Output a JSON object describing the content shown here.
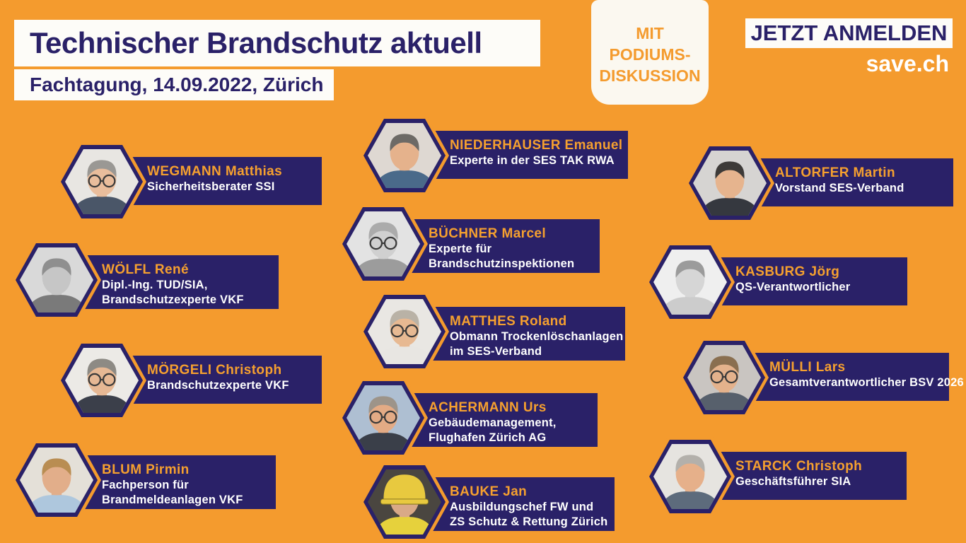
{
  "header": {
    "title": "Technischer Brandschutz aktuell",
    "subtitle": "Fachtagung, 14.09.2022, Zürich",
    "badge_lines": [
      "MIT",
      "PODIUMS-",
      "DISKUSSION"
    ],
    "register_label": "JETZT ANMELDEN",
    "website": "save.ch"
  },
  "colors": {
    "background_orange": "#F49B2E",
    "panel_navy": "#2A2168",
    "name_orange": "#F5A02F",
    "banner_white": "#FDFCF8"
  },
  "speakers": {
    "left": [
      {
        "name": "WEGMANN Matthias",
        "role_lines": [
          "Sicherheitsberater SSI"
        ],
        "photo": {
          "bg": "#e8e6e2",
          "skin": "#e9bd9c",
          "hair": "#9a9894",
          "shirt": "#4a5668",
          "glasses": true,
          "helmet": false
        }
      },
      {
        "name": "WÖLFL René",
        "role_lines": [
          "Dipl.-Ing. TUD/SIA,",
          "Brandschutzexperte VKF"
        ],
        "photo": {
          "bg": "#d9d9d9",
          "skin": "#c6c6c6",
          "hair": "#8f8f8f",
          "shirt": "#7a7a7a",
          "glasses": false,
          "helmet": false
        }
      },
      {
        "name": "MÖRGELI Christoph",
        "role_lines": [
          "Brandschutzexperte VKF"
        ],
        "photo": {
          "bg": "#eceae6",
          "skin": "#e6b894",
          "hair": "#8d8a84",
          "shirt": "#3b3f4a",
          "glasses": true,
          "helmet": false
        }
      },
      {
        "name": "BLUM Pirmin",
        "role_lines": [
          "Fachperson für",
          "Brandmeldeanlagen VKF"
        ],
        "photo": {
          "bg": "#e4e0d8",
          "skin": "#e2ae8a",
          "hair": "#b98d52",
          "shirt": "#aec7dd",
          "glasses": false,
          "helmet": false
        }
      }
    ],
    "center": [
      {
        "name": "NIEDERHAUSER Emanuel",
        "role_lines": [
          "Experte in der SES TAK RWA"
        ],
        "photo": {
          "bg": "#ded8d2",
          "skin": "#e5b28c",
          "hair": "#6d6a66",
          "shirt": "#4a6a8a",
          "glasses": false,
          "helmet": false
        }
      },
      {
        "name": "BÜCHNER Marcel",
        "role_lines": [
          "Experte für",
          "Brandschutzinspektionen"
        ],
        "photo": {
          "bg": "#e3e3e3",
          "skin": "#d0d0d0",
          "hair": "#ababab",
          "shirt": "#9c9c9c",
          "glasses": true,
          "helmet": false
        }
      },
      {
        "name": "MATTHES Roland",
        "role_lines": [
          "Obmann Trockenlöschanlagen",
          "im SES-Verband"
        ],
        "photo": {
          "bg": "#e9e7e3",
          "skin": "#e7b992",
          "hair": "#b9b2a6",
          "shirt": "#e8e6e2",
          "glasses": true,
          "helmet": false
        }
      },
      {
        "name": "ACHERMANN Urs",
        "role_lines": [
          "Gebäudemanagement,",
          "Flughafen Zürich AG"
        ],
        "photo": {
          "bg": "#aebfd2",
          "skin": "#e3ab85",
          "hair": "#9d9489",
          "shirt": "#3a3f49",
          "glasses": true,
          "helmet": false
        }
      },
      {
        "name": "BAUKE Jan",
        "role_lines": [
          "Ausbildungschef FW und",
          "ZS Schutz & Rettung Zürich"
        ],
        "photo": {
          "bg": "#4a4640",
          "skin": "#d9a987",
          "hair": "#e8c93f",
          "shirt": "#e6d13c",
          "glasses": false,
          "helmet": true
        }
      }
    ],
    "right": [
      {
        "name": "ALTORFER Martin",
        "role_lines": [
          "Vorstand SES-Verband"
        ],
        "photo": {
          "bg": "#d6d4d2",
          "skin": "#e6b48e",
          "hair": "#3d3a38",
          "shirt": "#35383f",
          "glasses": false,
          "helmet": false
        }
      },
      {
        "name": "KASBURG Jörg",
        "role_lines": [
          "QS-Verantwortlicher"
        ],
        "photo": {
          "bg": "#efefef",
          "skin": "#d6d6d6",
          "hair": "#9b9b9b",
          "shirt": "#cccccc",
          "glasses": false,
          "helmet": false
        }
      },
      {
        "name": "MÜLLI Lars",
        "role_lines": [
          "Gesamtverantwortlicher BSV 2026"
        ],
        "photo": {
          "bg": "#c9c5c1",
          "skin": "#e4b28c",
          "hair": "#8a6f50",
          "shirt": "#57606c",
          "glasses": true,
          "helmet": false
        }
      },
      {
        "name": "STARCK Christoph",
        "role_lines": [
          "Geschäftsführer SIA"
        ],
        "photo": {
          "bg": "#e6e4e0",
          "skin": "#e6b08a",
          "hair": "#b3b0ab",
          "shirt": "#5d6b7c",
          "glasses": false,
          "helmet": false
        }
      }
    ]
  }
}
